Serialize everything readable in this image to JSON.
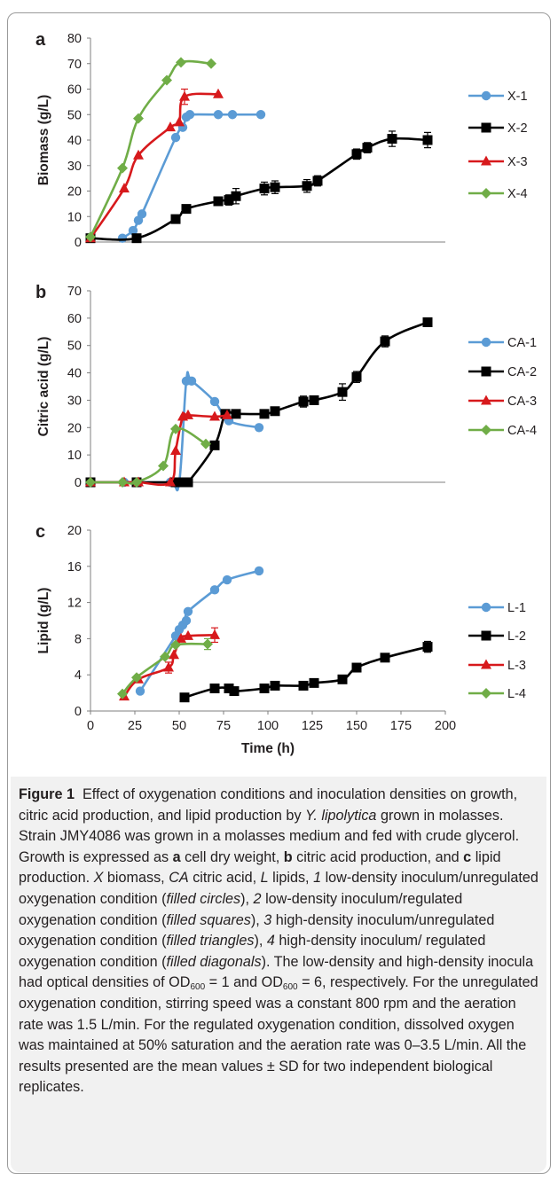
{
  "chart_data": [
    {
      "panel_label": "a",
      "type": "line",
      "ylabel": "Biomass (g/L)",
      "ylim": [
        0,
        80
      ],
      "yticks": [
        0,
        10,
        20,
        30,
        40,
        50,
        60,
        70,
        80
      ],
      "legend_position": "right",
      "series": [
        {
          "name": "X-1",
          "color": "#5b9bd5",
          "marker": "circle",
          "points": [
            [
              18,
              1.5
            ],
            [
              24,
              4.5
            ],
            [
              27,
              8.5
            ],
            [
              29,
              11
            ],
            [
              48,
              41
            ],
            [
              52,
              45
            ],
            [
              54,
              49
            ],
            [
              56,
              50
            ],
            [
              72,
              50
            ],
            [
              80,
              50
            ],
            [
              96,
              50
            ]
          ]
        },
        {
          "name": "X-2",
          "color": "#000000",
          "marker": "square",
          "points": [
            [
              0,
              1.5
            ],
            [
              26,
              1.5
            ],
            [
              48,
              9
            ],
            [
              54,
              13
            ],
            [
              72,
              16
            ],
            [
              78,
              16.5
            ],
            [
              82,
              18
            ],
            [
              98,
              21
            ],
            [
              104,
              21.5
            ],
            [
              122,
              22
            ],
            [
              128,
              24
            ],
            [
              150,
              34.5
            ],
            [
              156,
              37
            ],
            [
              170,
              40.5
            ],
            [
              190,
              40
            ]
          ],
          "err": [
            0,
            0,
            0,
            0,
            0,
            2,
            3,
            2.5,
            2.5,
            2.5,
            2,
            2,
            2,
            3,
            3
          ]
        },
        {
          "name": "X-3",
          "color": "#d7191c",
          "marker": "triangle",
          "points": [
            [
              0,
              1.5
            ],
            [
              19,
              21
            ],
            [
              27,
              34
            ],
            [
              45,
              45
            ],
            [
              50,
              47
            ],
            [
              53,
              57
            ],
            [
              72,
              58
            ]
          ],
          "err": [
            0,
            0,
            0,
            0,
            0,
            3,
            0
          ]
        },
        {
          "name": "X-4",
          "color": "#70ad47",
          "marker": "diamond",
          "points": [
            [
              0,
              2
            ],
            [
              18,
              29
            ],
            [
              27,
              48.5
            ],
            [
              43,
              63.5
            ],
            [
              51,
              70.5
            ],
            [
              68,
              70
            ]
          ]
        }
      ]
    },
    {
      "panel_label": "b",
      "type": "line",
      "ylabel": "Citric acid (g/L)",
      "ylim": [
        0,
        70
      ],
      "yticks": [
        0,
        10,
        20,
        30,
        40,
        50,
        60,
        70
      ],
      "legend_position": "right",
      "series": [
        {
          "name": "CA-1",
          "color": "#5b9bd5",
          "marker": "circle",
          "points": [
            [
              0,
              0
            ],
            [
              19,
              0
            ],
            [
              27,
              0
            ],
            [
              45,
              0
            ],
            [
              50,
              0
            ],
            [
              54,
              37
            ],
            [
              57,
              37
            ],
            [
              70,
              29.5
            ],
            [
              78,
              22.5
            ],
            [
              95,
              20
            ]
          ]
        },
        {
          "name": "CA-2",
          "color": "#000000",
          "marker": "square",
          "points": [
            [
              0,
              0
            ],
            [
              26,
              0
            ],
            [
              48,
              0
            ],
            [
              53,
              0
            ],
            [
              55,
              0
            ],
            [
              70,
              13.5
            ],
            [
              76,
              25
            ],
            [
              82,
              25
            ],
            [
              98,
              25
            ],
            [
              104,
              26
            ],
            [
              120,
              29.5
            ],
            [
              126,
              30
            ],
            [
              142,
              33
            ],
            [
              150,
              38.5
            ],
            [
              166,
              51.5
            ],
            [
              190,
              58.5
            ]
          ],
          "err": [
            0,
            0,
            0,
            0,
            0,
            0,
            0,
            0,
            0,
            0,
            2,
            0,
            3,
            2,
            2,
            0
          ]
        },
        {
          "name": "CA-3",
          "color": "#d7191c",
          "marker": "triangle",
          "points": [
            [
              0,
              0
            ],
            [
              19,
              0
            ],
            [
              27,
              0
            ],
            [
              45,
              0
            ],
            [
              48,
              11.5
            ],
            [
              52,
              24
            ],
            [
              55,
              24.5
            ],
            [
              70,
              24
            ],
            [
              77,
              24.5
            ]
          ]
        },
        {
          "name": "CA-4",
          "color": "#70ad47",
          "marker": "diamond",
          "points": [
            [
              0,
              0
            ],
            [
              18,
              0
            ],
            [
              26,
              0
            ],
            [
              41,
              6
            ],
            [
              48,
              19.5
            ],
            [
              65,
              14
            ]
          ]
        }
      ]
    },
    {
      "panel_label": "c",
      "type": "line",
      "ylabel": "Lipid (g/L)",
      "ylim": [
        0,
        20
      ],
      "yticks": [
        0,
        4,
        8,
        12,
        16,
        20
      ],
      "xlabel": "Time (h)",
      "xlim": [
        0,
        200
      ],
      "xticks": [
        0,
        25,
        50,
        75,
        100,
        125,
        150,
        175,
        200
      ],
      "legend_position": "right",
      "series": [
        {
          "name": "L-1",
          "color": "#5b9bd5",
          "marker": "circle",
          "points": [
            [
              28,
              2.2
            ],
            [
              48,
              8.3
            ],
            [
              50,
              9
            ],
            [
              52,
              9.5
            ],
            [
              54,
              10
            ],
            [
              55,
              11
            ],
            [
              70,
              13.4
            ],
            [
              77,
              14.5
            ],
            [
              95,
              15.5
            ]
          ]
        },
        {
          "name": "L-2",
          "color": "#000000",
          "marker": "square",
          "points": [
            [
              53,
              1.5
            ],
            [
              70,
              2.5
            ],
            [
              78,
              2.5
            ],
            [
              81,
              2.2
            ],
            [
              98,
              2.5
            ],
            [
              104,
              2.8
            ],
            [
              120,
              2.8
            ],
            [
              126,
              3.1
            ],
            [
              142,
              3.5
            ],
            [
              150,
              4.8
            ],
            [
              166,
              5.9
            ],
            [
              190,
              7.1
            ]
          ],
          "err": [
            0,
            0,
            0,
            0,
            0,
            0,
            0,
            0,
            0,
            0,
            0,
            0.6
          ]
        },
        {
          "name": "L-3",
          "color": "#d7191c",
          "marker": "triangle",
          "points": [
            [
              19,
              1.6
            ],
            [
              27,
              3.5
            ],
            [
              44,
              4.8
            ],
            [
              47,
              6.2
            ],
            [
              51,
              8
            ],
            [
              55,
              8.3
            ],
            [
              70,
              8.4
            ]
          ],
          "err": [
            0,
            0,
            0.6,
            0,
            0,
            0,
            0.8
          ]
        },
        {
          "name": "L-4",
          "color": "#70ad47",
          "marker": "diamond",
          "points": [
            [
              18,
              1.9
            ],
            [
              26,
              3.7
            ],
            [
              42,
              6
            ],
            [
              48,
              7.3
            ],
            [
              66,
              7.4
            ]
          ],
          "err": [
            0,
            0,
            0,
            0,
            0.6
          ]
        }
      ]
    }
  ],
  "caption": {
    "figure_label": "Figure 1",
    "lead": "Effect of oxygenation conditions and inoculation densities on growth, citric acid production, and lipid production by",
    "species": "Y. lipolytica",
    "text_1": "grown in molasses. Strain JMY4086 was grown in a molasses medium and fed with crude glycerol. Growth is expressed as",
    "panel_a": "a",
    "text_a": "cell dry weight,",
    "panel_b": "b",
    "text_b": "citric acid production, and",
    "panel_c": "c",
    "text_c": "lipid production.",
    "abbr_x": "X",
    "text_x": "biomass,",
    "abbr_ca": "CA",
    "text_ca": "citric acid,",
    "abbr_l": "L",
    "text_l": "lipids,",
    "num_1": "1",
    "text_1b": "low-density inoculum/unregulated oxygenation condition (",
    "marker_1": "filled circles",
    "text_2a": "),",
    "num_2": "2",
    "text_2b": "low-density inoculum/regulated oxygenation condition (",
    "marker_2": "filled squares",
    "text_3a": "),",
    "num_3": "3",
    "text_3b": "high-density inoculum/unregulated oxygenation condition (",
    "marker_3": "filled triangles",
    "text_4a": "),",
    "num_4": "4",
    "text_4b": "high-density inoculum/ regulated oxygenation condition (",
    "marker_4": "filled diagonals",
    "text_od_1": "). The low-density and high-density inocula had optical densities of OD",
    "od_sub_1": "600",
    "text_od_2": " = 1 and OD",
    "od_sub_2": "600",
    "text_od_3": " = 6, respectively. For the unregulated oxygenation condition, stirring speed was a constant 800 rpm and the aeration rate was 1.5 L/min. For the regulated oxygenation condition, dissolved oxygen was maintained at 50% saturation and the aeration rate was 0–3.5 L/min. All the results presented are the mean values ± SD for two independent biological replicates."
  }
}
